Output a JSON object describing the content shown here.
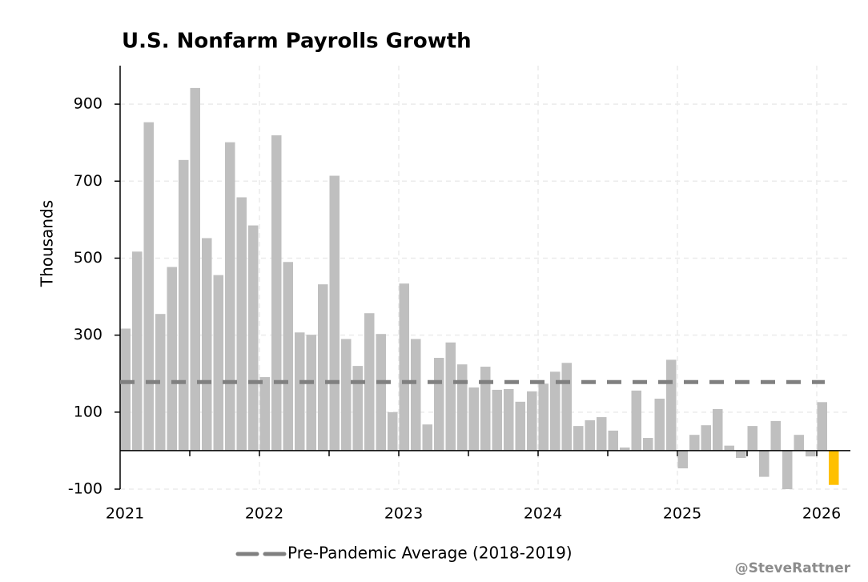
{
  "chart_data": {
    "type": "bar",
    "title": "U.S. Nonfarm Payrolls Growth",
    "y_label": "Thousands",
    "categories": [
      "2021",
      null,
      null,
      null,
      null,
      null,
      null,
      null,
      null,
      null,
      null,
      null,
      "2022",
      null,
      null,
      null,
      null,
      null,
      null,
      null,
      null,
      null,
      null,
      null,
      "2023",
      null,
      null,
      null,
      null,
      null,
      null,
      null,
      null,
      null,
      null,
      null,
      "2024",
      null,
      null,
      null,
      null,
      null,
      null,
      null,
      null,
      null,
      null,
      null,
      "2025",
      null,
      null,
      null,
      null,
      null,
      null,
      null,
      null,
      null,
      null,
      null,
      "2026",
      null
    ],
    "values": [
      317,
      517,
      853,
      355,
      477,
      755,
      942,
      552,
      456,
      801,
      658,
      585,
      191,
      819,
      490,
      307,
      301,
      432,
      714,
      290,
      220,
      357,
      303,
      100,
      434,
      290,
      68,
      241,
      281,
      224,
      164,
      218,
      158,
      160,
      127,
      154,
      174,
      205,
      228,
      64,
      79,
      87,
      52,
      8,
      156,
      33,
      135,
      236,
      -46,
      41,
      66,
      108,
      13,
      -19,
      64,
      -68,
      77,
      -100,
      41,
      -15,
      126,
      -89
    ],
    "color": "#bfbfbf",
    "highlight_color": "#ffc000",
    "highlight": [
      61
    ],
    "ylim": [
      -100,
      1000
    ],
    "yticks": [
      -100,
      100,
      300,
      500,
      700,
      900
    ],
    "grid": true,
    "reference_line": {
      "value": 178,
      "label": "Pre-Pandemic Average (2018-2019)",
      "color": "#808080"
    },
    "credit": "@SteveRattner"
  }
}
